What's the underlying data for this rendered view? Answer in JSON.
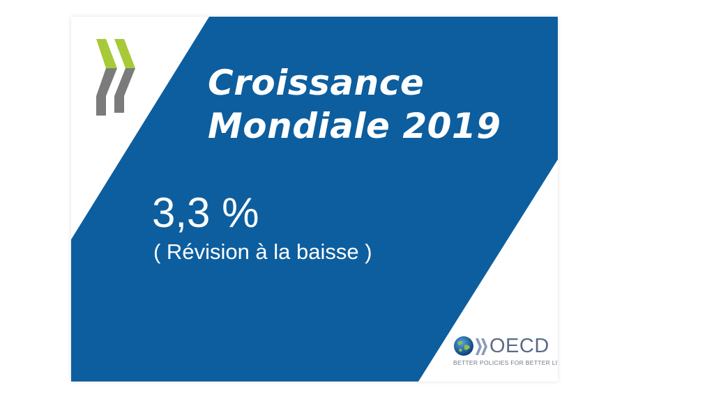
{
  "slide": {
    "title_line1": "Croissance",
    "title_line2": "Mondiale 2019",
    "figure": "3,3 %",
    "note": "( Révision à la baisse )"
  },
  "branding": {
    "logo_icon": "oecd-chevrons-icon",
    "globe_icon": "globe-icon",
    "wordmark": "OECD",
    "tagline": "BETTER POLICIES FOR BETTER LIVES"
  },
  "colors": {
    "panel_blue": "#0d5e9e",
    "chevron_green": "#a8c938",
    "chevron_gray": "#7b7b7b",
    "text_white": "#ffffff"
  }
}
